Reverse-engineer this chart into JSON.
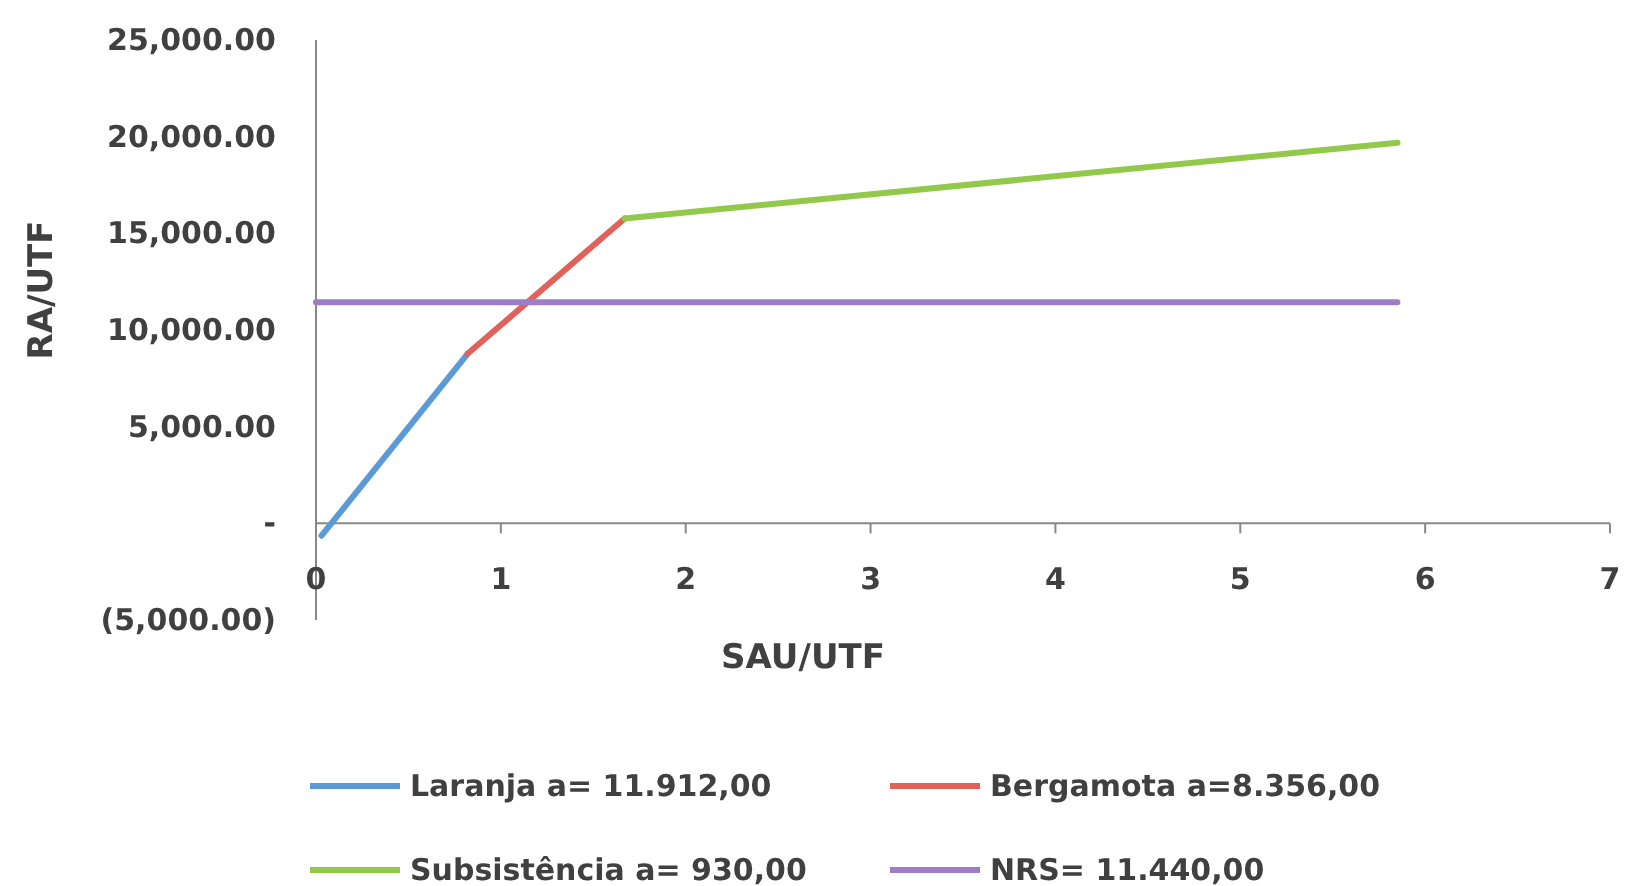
{
  "chart_data": {
    "type": "line",
    "xlabel": "SAU/UTF",
    "ylabel": "RA/UTF",
    "xlim": [
      0,
      7
    ],
    "xticks": [
      0,
      1,
      2,
      3,
      4,
      5,
      6,
      7
    ],
    "ylim": [
      -5000,
      25000
    ],
    "yticks": [
      {
        "value": -5000,
        "label": "(5,000.00)"
      },
      {
        "value": 0,
        "label": "-"
      },
      {
        "value": 5000,
        "label": "5,000.00"
      },
      {
        "value": 10000,
        "label": "10,000.00"
      },
      {
        "value": 15000,
        "label": "15,000.00"
      },
      {
        "value": 20000,
        "label": "20,000.00"
      },
      {
        "value": 25000,
        "label": "25,000.00"
      }
    ],
    "grid": false,
    "legend": "bottom",
    "marker": "none",
    "series": [
      {
        "name": "Laranja a= 11.912,00",
        "color": "#5b9bd5",
        "x": [
          0.03,
          0.82
        ],
        "values": [
          -640,
          8770
        ]
      },
      {
        "name": "Bergamota a=8.356,00",
        "color": "#e0625a",
        "x": [
          0.82,
          1.67
        ],
        "values": [
          8770,
          15770
        ]
      },
      {
        "name": "Subsistência a= 930,00",
        "color": "#92c94a",
        "x": [
          1.67,
          5.85
        ],
        "values": [
          15770,
          19690
        ]
      },
      {
        "name": "NRS= 11.440,00",
        "color": "#a07cc5",
        "x": [
          0,
          5.85
        ],
        "values": [
          11440,
          11440
        ]
      }
    ]
  }
}
